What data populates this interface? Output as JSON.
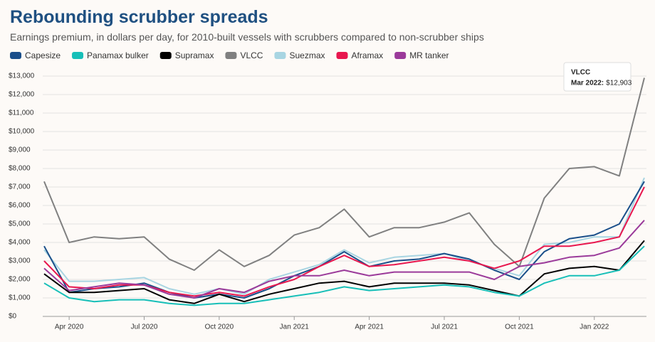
{
  "chart_data": {
    "type": "line",
    "title": "Rebounding scrubber spreads",
    "subtitle": "Earnings premium, in dollars per day, for 2010-built vessels with scrubbers compared to non-scrubber ships",
    "x": [
      "2020-03",
      "2020-04",
      "2020-05",
      "2020-06",
      "2020-07",
      "2020-08",
      "2020-09",
      "2020-10",
      "2020-11",
      "2020-12",
      "2021-01",
      "2021-02",
      "2021-03",
      "2021-04",
      "2021-05",
      "2021-06",
      "2021-07",
      "2021-08",
      "2021-09",
      "2021-10",
      "2021-11",
      "2021-12",
      "2022-01",
      "2022-02",
      "2022-03"
    ],
    "xticks": [
      {
        "value": "2020-04",
        "label": "Apr 2020"
      },
      {
        "value": "2020-07",
        "label": "Jul 2020"
      },
      {
        "value": "2020-10",
        "label": "Oct 2020"
      },
      {
        "value": "2021-01",
        "label": "Jan 2021"
      },
      {
        "value": "2021-04",
        "label": "Apr 2021"
      },
      {
        "value": "2021-07",
        "label": "Jul 2021"
      },
      {
        "value": "2021-10",
        "label": "Oct 2021"
      },
      {
        "value": "2022-01",
        "label": "Jan 2022"
      }
    ],
    "ylim": [
      0,
      13000
    ],
    "yticks": [
      {
        "value": 0,
        "label": "$0"
      },
      {
        "value": 1000,
        "label": "$1,000"
      },
      {
        "value": 2000,
        "label": "$2,000"
      },
      {
        "value": 3000,
        "label": "$3,000"
      },
      {
        "value": 4000,
        "label": "$4,000"
      },
      {
        "value": 5000,
        "label": "$5,000"
      },
      {
        "value": 6000,
        "label": "$6,000"
      },
      {
        "value": 7000,
        "label": "$7,000"
      },
      {
        "value": 8000,
        "label": "$8,000"
      },
      {
        "value": 9000,
        "label": "$9,000"
      },
      {
        "value": 10000,
        "label": "$10,000"
      },
      {
        "value": 11000,
        "label": "$11,000"
      },
      {
        "value": 12000,
        "label": "$12,000"
      },
      {
        "value": 13000,
        "label": "$13,000"
      }
    ],
    "grid": true,
    "series": [
      {
        "name": "Capesize",
        "color": "#1a4f8a",
        "values": [
          3800,
          1300,
          1500,
          1600,
          1800,
          1300,
          1000,
          1200,
          1000,
          1500,
          2200,
          2700,
          3500,
          2700,
          3000,
          3100,
          3400,
          3100,
          2500,
          2000,
          3500,
          4200,
          4400,
          5000,
          7300
        ]
      },
      {
        "name": "Panamax bulker",
        "color": "#17bfb8",
        "values": [
          1800,
          1000,
          800,
          900,
          900,
          700,
          600,
          700,
          700,
          900,
          1100,
          1300,
          1600,
          1400,
          1500,
          1600,
          1700,
          1600,
          1300,
          1100,
          1800,
          2200,
          2200,
          2500,
          3800
        ]
      },
      {
        "name": "Supramax",
        "color": "#000000",
        "values": [
          2300,
          1300,
          1300,
          1400,
          1500,
          900,
          700,
          1200,
          800,
          1200,
          1500,
          1800,
          1900,
          1600,
          1800,
          1800,
          1800,
          1700,
          1400,
          1100,
          2300,
          2600,
          2700,
          2500,
          4100
        ]
      },
      {
        "name": "VLCC",
        "color": "#808080",
        "values": [
          7300,
          4000,
          4300,
          4200,
          4300,
          3100,
          2500,
          3600,
          2700,
          3300,
          4400,
          4800,
          5800,
          4300,
          4800,
          4800,
          5100,
          5600,
          3900,
          2700,
          6400,
          8000,
          8100,
          7600,
          12903
        ]
      },
      {
        "name": "Suezmax",
        "color": "#a8d5e2",
        "values": [
          3600,
          1900,
          1900,
          2000,
          2100,
          1500,
          1200,
          1500,
          1200,
          2000,
          2400,
          2800,
          3600,
          2900,
          3200,
          3300,
          3400,
          3000,
          2600,
          2200,
          3900,
          4000,
          4300,
          4300,
          7500
        ]
      },
      {
        "name": "Aframax",
        "color": "#e8174e",
        "values": [
          3000,
          1600,
          1500,
          1700,
          1700,
          1300,
          1100,
          1300,
          1100,
          1600,
          2000,
          2700,
          3300,
          2700,
          2800,
          3000,
          3200,
          3000,
          2600,
          3000,
          3800,
          3800,
          4000,
          4300,
          7000
        ]
      },
      {
        "name": "MR tanker",
        "color": "#9b3a9a",
        "values": [
          2600,
          1400,
          1600,
          1800,
          1700,
          1200,
          1000,
          1500,
          1300,
          1900,
          2200,
          2200,
          2500,
          2200,
          2400,
          2400,
          2400,
          2400,
          2000,
          2700,
          2900,
          3200,
          3300,
          3700,
          5200
        ]
      }
    ],
    "annotation": {
      "series": "VLCC",
      "x_label": "Mar 2022:",
      "value_label": "$12,903"
    }
  }
}
